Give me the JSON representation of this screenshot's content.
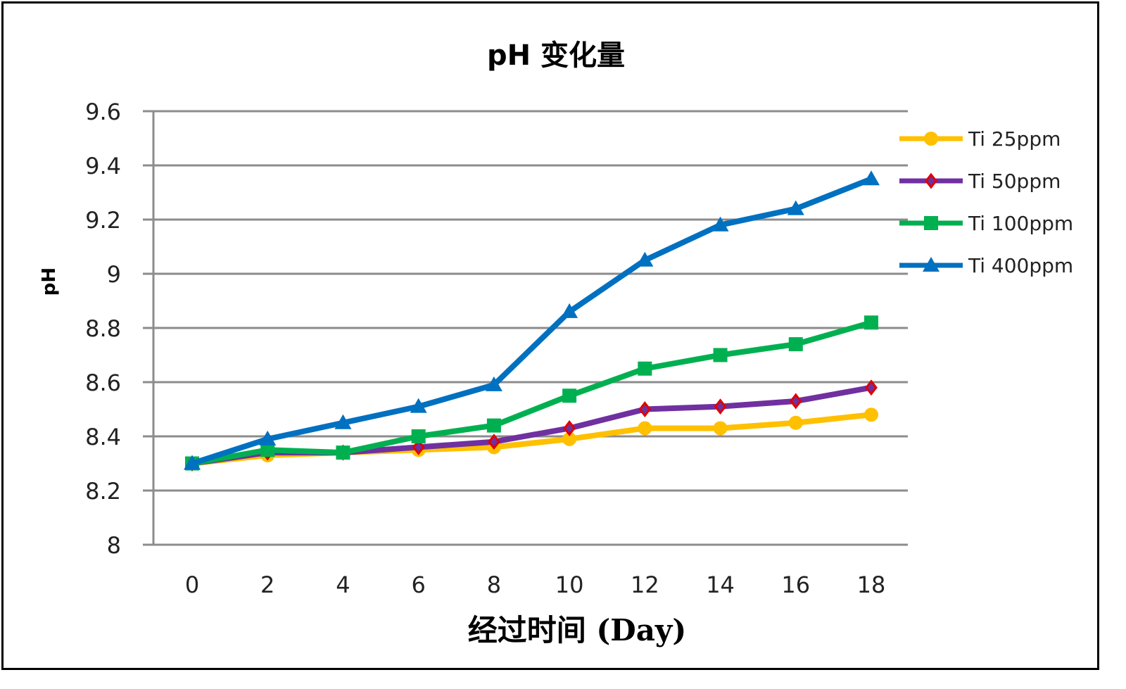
{
  "chart_data": {
    "type": "line",
    "title": "pH   变化量",
    "xlabel": "经过时间 (Day)",
    "ylabel": "pH",
    "x": [
      0,
      2,
      4,
      6,
      8,
      10,
      12,
      14,
      16,
      18
    ],
    "ylim": [
      8,
      9.6
    ],
    "yticks": [
      "8",
      "8.2",
      "8.4",
      "8.6",
      "8.8",
      "9",
      "9.2",
      "9.4",
      "9.6"
    ],
    "grid": "horizontal",
    "legend": "right",
    "series": [
      {
        "name": "Ti 25ppm",
        "color": "#FFC000",
        "marker": "circle",
        "values": [
          8.3,
          8.33,
          8.34,
          8.35,
          8.36,
          8.39,
          8.43,
          8.43,
          8.45,
          8.48
        ]
      },
      {
        "name": "Ti 50ppm",
        "color": "#7030A0",
        "marker": "diamond",
        "values": [
          8.3,
          8.34,
          8.34,
          8.36,
          8.38,
          8.43,
          8.5,
          8.51,
          8.53,
          8.58
        ]
      },
      {
        "name": "Ti 100ppm",
        "color": "#00B050",
        "marker": "square",
        "values": [
          8.3,
          8.35,
          8.34,
          8.4,
          8.44,
          8.55,
          8.65,
          8.7,
          8.74,
          8.82
        ]
      },
      {
        "name": "Ti 400ppm",
        "color": "#0070C0",
        "marker": "triangle",
        "values": [
          8.3,
          8.39,
          8.45,
          8.51,
          8.59,
          8.86,
          9.05,
          9.18,
          9.24,
          9.35
        ]
      }
    ]
  }
}
